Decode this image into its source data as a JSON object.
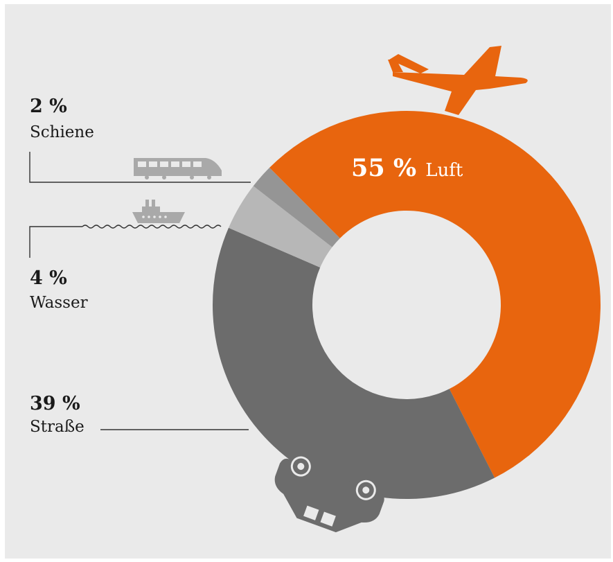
{
  "chart_data": {
    "type": "pie",
    "categories": [
      "Luft",
      "Straße",
      "Wasser",
      "Schiene"
    ],
    "values": [
      55,
      39,
      4,
      2
    ],
    "value_labels": [
      "55 %",
      "39 %",
      "4 %",
      "2 %"
    ],
    "colors": [
      "#e8650e",
      "#6c6c6c",
      "#b7b7b7",
      "#959595"
    ],
    "background": "#eaeaea",
    "icons": [
      "airplane-icon",
      "car-icon",
      "ship-icon",
      "train-icon"
    ]
  }
}
